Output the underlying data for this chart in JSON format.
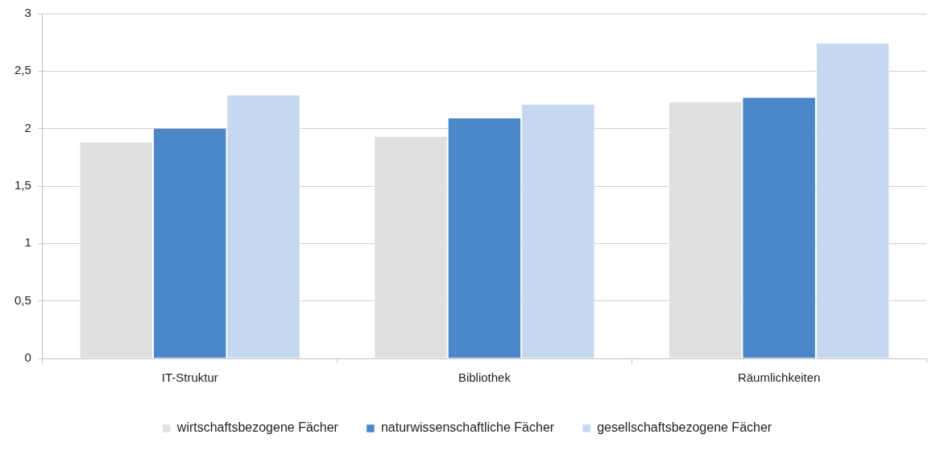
{
  "chart_data": {
    "type": "bar",
    "categories": [
      "IT-Struktur",
      "Bibliothek",
      "Räumlichkeiten"
    ],
    "series": [
      {
        "name": "wirtschaftsbezogene Fächer",
        "color": "#e0e0e0",
        "values": [
          1.88,
          1.93,
          2.23
        ]
      },
      {
        "name": "naturwissenschaftliche Fächer",
        "color": "#4a86c8",
        "values": [
          2.0,
          2.09,
          2.27
        ]
      },
      {
        "name": "gesellschaftsbezogene Fächer",
        "color": "#c5d8ef",
        "values": [
          2.29,
          2.21,
          2.74
        ]
      }
    ],
    "ylim": [
      0,
      3
    ],
    "yticks": [
      {
        "value": 0,
        "label": "0"
      },
      {
        "value": 0.5,
        "label": "0,5"
      },
      {
        "value": 1,
        "label": "1"
      },
      {
        "value": 1.5,
        "label": "1,5"
      },
      {
        "value": 2,
        "label": "2"
      },
      {
        "value": 2.5,
        "label": "2,5"
      },
      {
        "value": 3,
        "label": "3"
      }
    ],
    "grid": "y",
    "legend": "bottom"
  }
}
